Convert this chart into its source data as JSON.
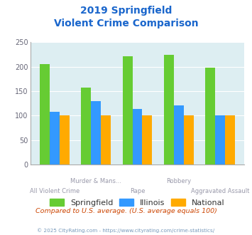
{
  "title_line1": "2019 Springfield",
  "title_line2": "Violent Crime Comparison",
  "categories": [
    "All Violent Crime",
    "Murder & Mans...",
    "Rape",
    "Robbery",
    "Aggravated Assault"
  ],
  "springfield": [
    205,
    158,
    222,
    224,
    198
  ],
  "illinois": [
    108,
    130,
    113,
    121,
    101
  ],
  "national": [
    100,
    100,
    100,
    100,
    100
  ],
  "color_springfield": "#66cc33",
  "color_illinois": "#3399ff",
  "color_national": "#ffaa00",
  "ylabel_max": 250,
  "yticks": [
    0,
    50,
    100,
    150,
    200,
    250
  ],
  "background_color": "#ddeef2",
  "note": "Compared to U.S. average. (U.S. average equals 100)",
  "copyright": "© 2025 CityRating.com - https://www.cityrating.com/crime-statistics/",
  "title_color": "#1a66cc",
  "xlabel_color": "#9999aa",
  "note_color": "#cc4400",
  "copyright_color": "#7799bb",
  "legend_labels": [
    "Springfield",
    "Illinois",
    "National"
  ],
  "legend_text_color": "#333333"
}
